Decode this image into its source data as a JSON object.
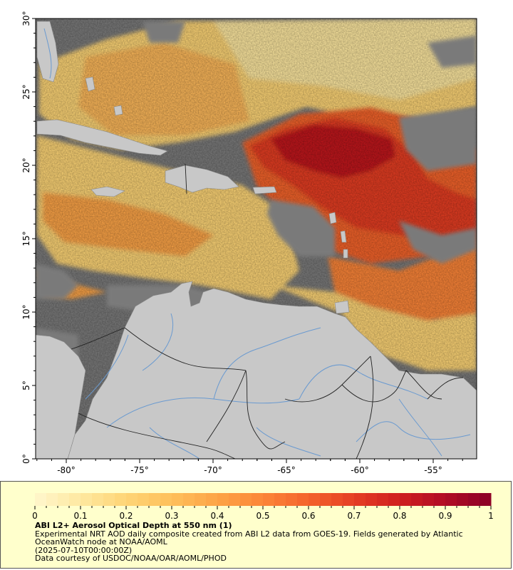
{
  "map": {
    "lat_ticks": [
      "30°",
      "25°",
      "20°",
      "15°",
      "10°",
      "5°",
      "0°"
    ],
    "lon_ticks": [
      "-80°",
      "-75°",
      "-70°",
      "-65°",
      "-60°",
      "-55°"
    ],
    "colors": {
      "ocean_nodata": "#7a7a7a",
      "land": "#c8c8c8",
      "rivers": "#6a9ad0",
      "borders": "#222222"
    }
  },
  "colorbar": {
    "min": 0,
    "max": 1,
    "tick_labels": [
      "0",
      "0.1",
      "0.2",
      "0.3",
      "0.4",
      "0.5",
      "0.6",
      "0.7",
      "0.8",
      "0.9",
      "1"
    ],
    "colors": [
      "#fff7cc",
      "#fee8a0",
      "#fed576",
      "#febf5a",
      "#fda446",
      "#fc8538",
      "#f4632c",
      "#e53e24",
      "#cf1f1f",
      "#b10c25",
      "#8a0026"
    ]
  },
  "legend": {
    "title": "ABI L2+ Aerosol Optical Depth at 550 nm (1)",
    "description": "Experimental NRT AOD daily composite created from ABI L2 data from GOES-19. Fields generated by Atlantic OceanWatch node at NOAA/AOML",
    "timestamp": "(2025-07-10T00:00:00Z)",
    "credit": "Data courtesy of USDOC/NOAA/OAR/AOML/PHOD"
  }
}
